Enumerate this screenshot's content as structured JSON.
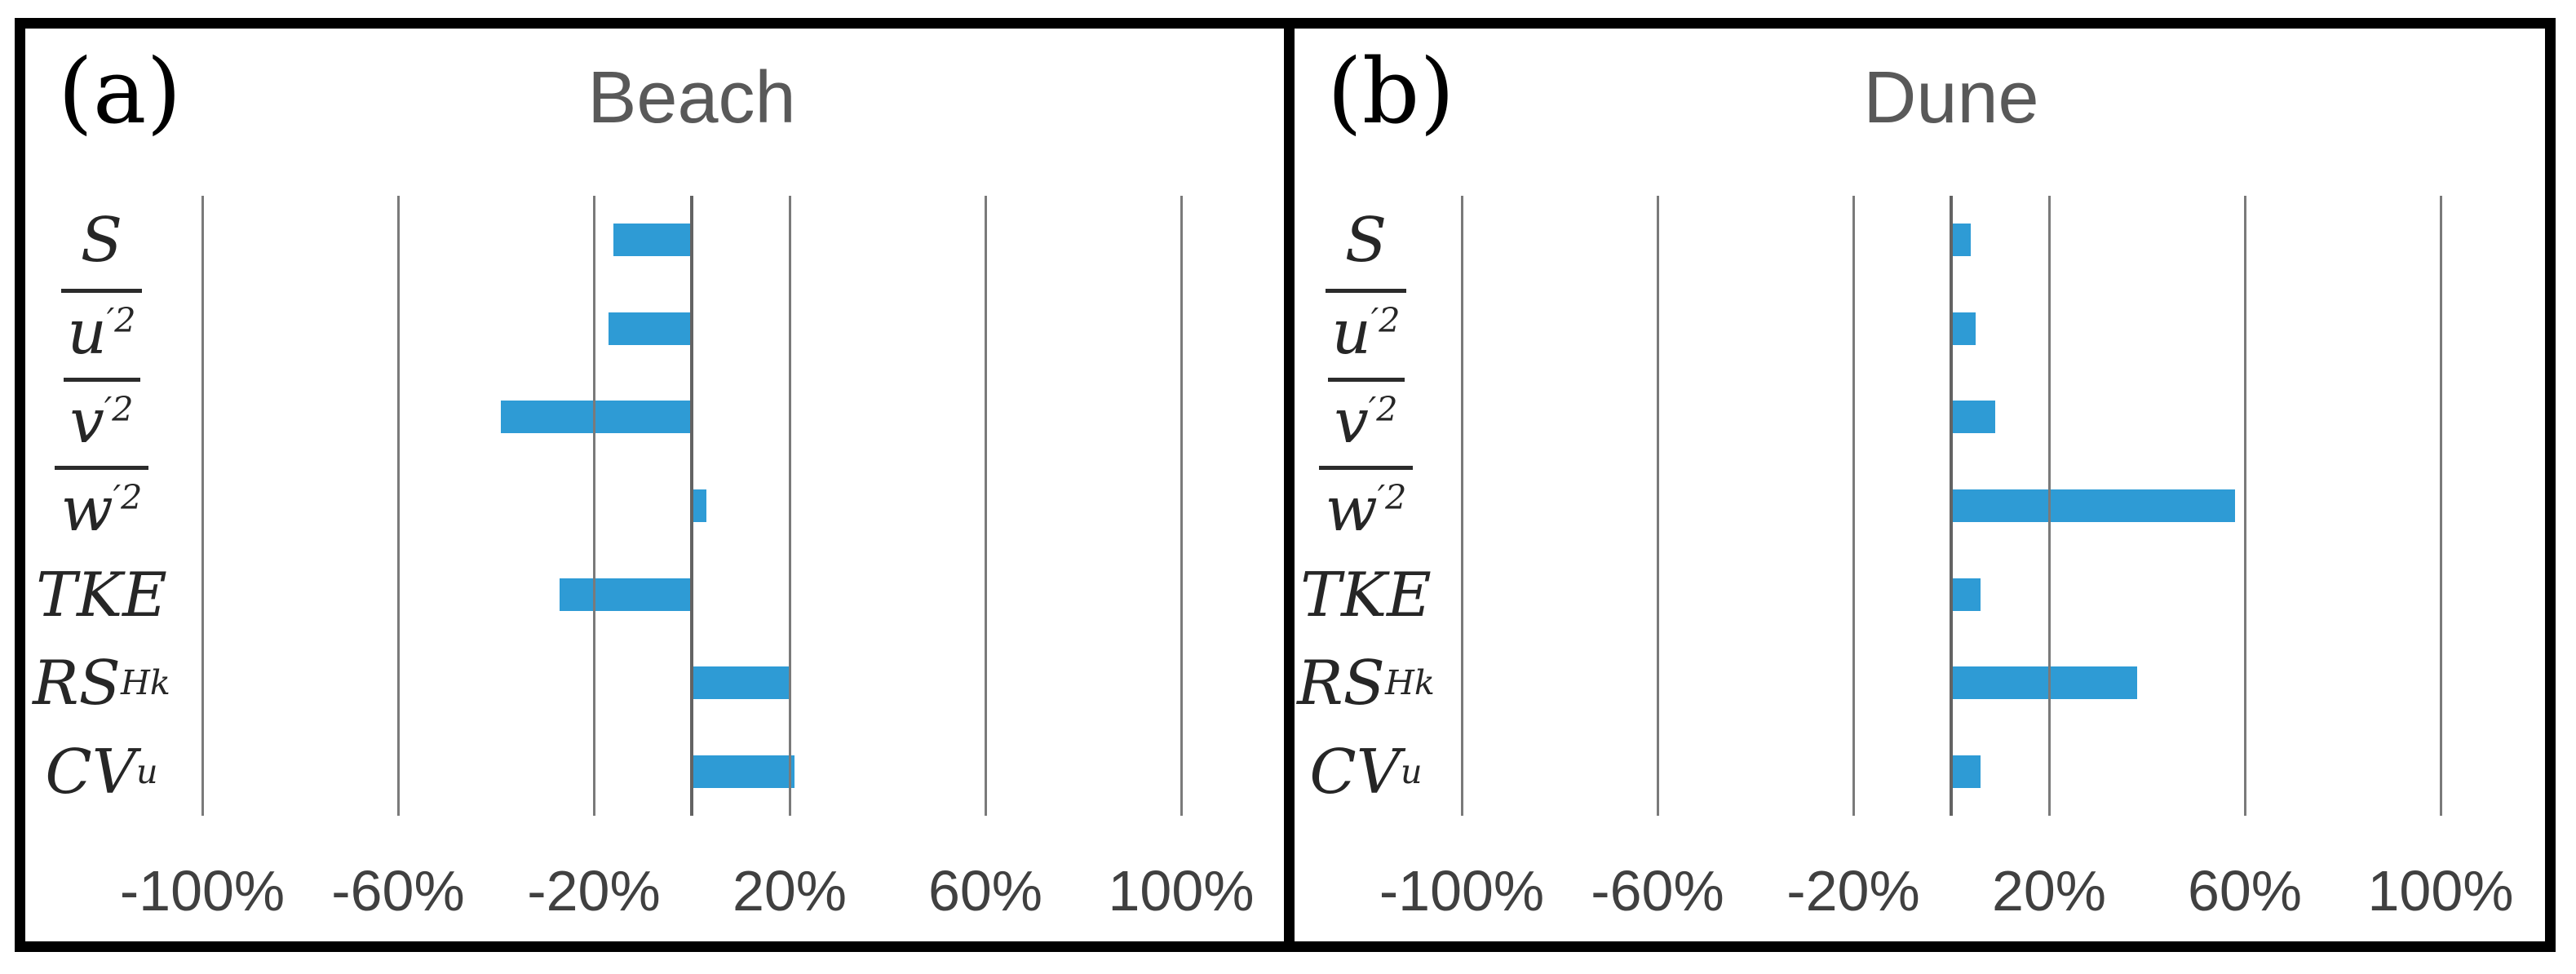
{
  "figure": {
    "style": {
      "bar_color": "#2E9BD5",
      "gridline_color": "#7a7a7a",
      "zero_axis_color": "#636363",
      "frame_color": "#000000",
      "title_color": "#595959",
      "tick_label_color": "#404040",
      "category_label_color": "#262626",
      "background_color": "#ffffff"
    }
  },
  "chart_data": [
    {
      "type": "bar",
      "orientation": "horizontal",
      "panel_label": "(a)",
      "title": "Beach",
      "categories": [
        "S",
        "u'2 (overbar)",
        "v'2 (overbar)",
        "w'2 (overbar)",
        "TKE",
        "RS_Hk",
        "CV_u"
      ],
      "category_labels": [
        {
          "base": "S"
        },
        {
          "base": "u",
          "sup": "′2",
          "overline": true
        },
        {
          "base": "v",
          "sup": "′2",
          "overline": true
        },
        {
          "base": "w",
          "sup": "′2",
          "overline": true
        },
        {
          "base": "TKE"
        },
        {
          "base": "RS",
          "sub": "Hk"
        },
        {
          "base": "CV",
          "sub": "u"
        }
      ],
      "values_pct": [
        -16,
        -17,
        -39,
        3,
        -27,
        20,
        21
      ],
      "x_ticks": [
        {
          "label": "-100%",
          "value": -100
        },
        {
          "label": "-60%",
          "value": -60
        },
        {
          "label": "-20%",
          "value": -20
        },
        {
          "label": "20%",
          "value": 20
        },
        {
          "label": "60%",
          "value": 60
        },
        {
          "label": "100%",
          "value": 100
        }
      ],
      "xlim": [
        -100,
        100
      ],
      "grid": true,
      "legend": null
    },
    {
      "type": "bar",
      "orientation": "horizontal",
      "panel_label": "(b)",
      "title": "Dune",
      "categories": [
        "S",
        "u'2 (overbar)",
        "v'2 (overbar)",
        "w'2 (overbar)",
        "TKE",
        "RS_Hk",
        "CV_u"
      ],
      "category_labels": [
        {
          "base": "S"
        },
        {
          "base": "u",
          "sup": "′2",
          "overline": true
        },
        {
          "base": "v",
          "sup": "′2",
          "overline": true
        },
        {
          "base": "w",
          "sup": "′2",
          "overline": true
        },
        {
          "base": "TKE"
        },
        {
          "base": "RS",
          "sub": "Hk"
        },
        {
          "base": "CV",
          "sub": "u"
        }
      ],
      "values_pct": [
        4,
        5,
        9,
        58,
        6,
        38,
        6
      ],
      "x_ticks": [
        {
          "label": "-100%",
          "value": -100
        },
        {
          "label": "-60%",
          "value": -60
        },
        {
          "label": "-20%",
          "value": -20
        },
        {
          "label": "20%",
          "value": 20
        },
        {
          "label": "60%",
          "value": 60
        },
        {
          "label": "100%",
          "value": 100
        }
      ],
      "xlim": [
        -100,
        100
      ],
      "grid": true,
      "legend": null
    }
  ]
}
